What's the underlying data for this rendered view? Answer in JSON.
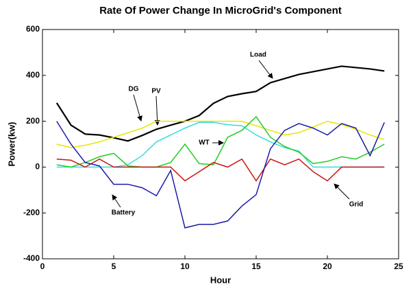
{
  "chart_data": {
    "type": "line",
    "title": "Rate Of Power Change In MicroGrid's Component",
    "x_label": "Hour",
    "y_label": "Power(kw)",
    "x": [
      1,
      2,
      3,
      4,
      5,
      6,
      7,
      8,
      9,
      10,
      11,
      12,
      13,
      14,
      15,
      16,
      17,
      18,
      19,
      20,
      21,
      22,
      23,
      24
    ],
    "series": [
      {
        "name": "Load",
        "color": "#000000",
        "values": [
          280,
          183,
          144,
          140,
          128,
          114,
          138,
          165,
          183,
          200,
          225,
          278,
          308,
          320,
          330,
          368,
          386,
          404,
          416,
          428,
          440,
          434,
          428,
          419
        ]
      },
      {
        "name": "DG",
        "color": "#e6e600",
        "values": [
          100,
          85,
          95,
          110,
          130,
          150,
          170,
          200,
          200,
          200,
          200,
          200,
          200,
          200,
          180,
          160,
          140,
          150,
          175,
          200,
          185,
          165,
          140,
          120
        ]
      },
      {
        "name": "PV",
        "color": "#33dddd",
        "values": [
          0,
          0,
          0,
          0,
          0,
          10,
          50,
          110,
          140,
          170,
          195,
          195,
          185,
          180,
          140,
          110,
          85,
          70,
          0,
          0,
          0,
          0,
          0,
          0
        ]
      },
      {
        "name": "WT",
        "color": "#22cc22",
        "values": [
          10,
          0,
          20,
          45,
          60,
          5,
          0,
          0,
          20,
          100,
          15,
          10,
          130,
          160,
          220,
          130,
          90,
          65,
          15,
          25,
          45,
          35,
          65,
          100
        ]
      },
      {
        "name": "Battery",
        "color": "#cc1111",
        "values": [
          35,
          30,
          0,
          35,
          0,
          0,
          0,
          0,
          0,
          -60,
          -20,
          20,
          0,
          35,
          -60,
          35,
          10,
          35,
          -20,
          -60,
          0,
          0,
          0,
          0
        ]
      },
      {
        "name": "Grid",
        "color": "#1a1aaa",
        "values": [
          200,
          100,
          20,
          5,
          -75,
          -75,
          -90,
          -125,
          -15,
          -265,
          -250,
          -250,
          -235,
          -170,
          -120,
          80,
          160,
          190,
          170,
          140,
          190,
          170,
          50,
          195
        ]
      }
    ],
    "xlim": [
      0,
      25
    ],
    "xticks": [
      0,
      5,
      10,
      15,
      20,
      25
    ],
    "ylim": [
      -400,
      600
    ],
    "yticks": [
      -400,
      -200,
      0,
      200,
      400,
      600
    ],
    "grid": false
  }
}
